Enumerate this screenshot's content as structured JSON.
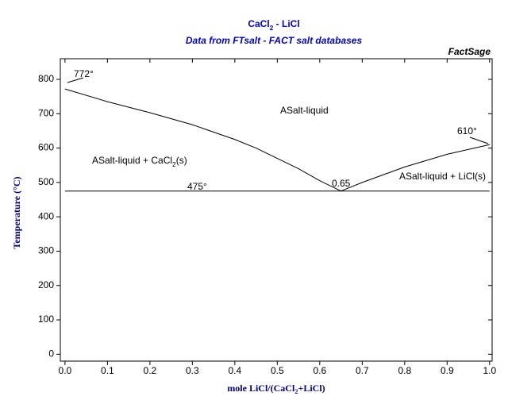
{
  "chart_data": {
    "type": "line",
    "title": [
      "CaCl",
      "2",
      " - LiCl"
    ],
    "subtitle": "Data from FTsalt - FACT salt databases",
    "brand": "FactSage",
    "x_label": [
      "mole LiCl/(CaCl",
      "2",
      "+LiCl)"
    ],
    "y_label": "Temperature (°C)",
    "xlim": [
      -0.011,
      1.006
    ],
    "ylim": [
      -20,
      860
    ],
    "xticks": [
      {
        "value": 0,
        "label": "0.0"
      },
      0.1,
      0.2,
      0.3,
      0.4,
      0.5,
      0.6,
      0.7,
      0.8,
      0.9,
      {
        "value": 1,
        "label": "1.0"
      }
    ],
    "yticks": [
      0,
      100,
      200,
      300,
      400,
      500,
      600,
      700,
      800
    ],
    "color": "#000000",
    "series": [
      {
        "x": [
          0,
          0.1,
          0.2,
          0.3,
          0.4,
          0.45,
          0.5,
          0.55,
          0.6,
          0.65
        ],
        "values": [
          772,
          735,
          703,
          668,
          625,
          600,
          570,
          540,
          505,
          475
        ]
      },
      {
        "x": [
          0.65,
          0.7,
          0.8,
          0.9,
          1.0
        ],
        "values": [
          475,
          500,
          545,
          582,
          610
        ]
      },
      {
        "x": [
          0,
          1
        ],
        "values": [
          475,
          475
        ]
      }
    ],
    "annotations": [
      [
        "772°"
      ],
      [
        "610°"
      ],
      [
        "475°"
      ],
      [
        "0.65"
      ],
      [
        "ASalt-liquid"
      ],
      [
        "ASalt-liquid + CaCl",
        "2",
        "(s)"
      ],
      [
        "ASalt-liquid + LiCl(s)"
      ]
    ]
  }
}
